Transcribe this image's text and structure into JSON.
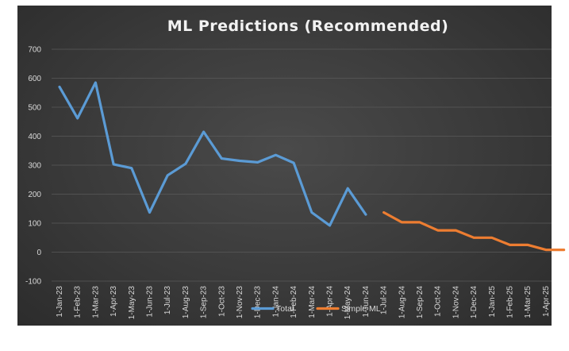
{
  "chart_data": {
    "type": "line",
    "title": "ML Predictions (Recommended)",
    "xlabel": "",
    "ylabel": "",
    "ylim": [
      -100,
      700
    ],
    "yticks": [
      700,
      600,
      500,
      400,
      300,
      200,
      100,
      0,
      -100
    ],
    "x": [
      "1-Jan-23",
      "1-Feb-23",
      "1-Mar-23",
      "1-Apr-23",
      "1-May-23",
      "1-Jun-23",
      "1-Jul-23",
      "1-Aug-23",
      "1-Sep-23",
      "1-Oct-23",
      "1-Nov-23",
      "1-Dec-23",
      "1-Jan-24",
      "1-Feb-24",
      "1-Mar-24",
      "1-Apr-24",
      "1-May-24",
      "1-Jun-24",
      "1-Jul-24",
      "1-Aug-24",
      "1-Sep-24",
      "1-Oct-24",
      "1-Nov-24",
      "1-Dec-24",
      "1-Jan-25",
      "1-Feb-25",
      "1-Mar-25",
      "1-Apr-25",
      "1-May-25"
    ],
    "xtick_labels": [
      "1-Jan-23",
      "1-Feb-23",
      "1-Mar-23",
      "1-Apr-23",
      "1-May-23",
      "1-Jun-23",
      "1-Jul-23",
      "1-Aug-23",
      "1-Sep-23",
      "1-Oct-23",
      "1-Nov-23",
      "1-Dec-23",
      "1-Jan-24",
      "1-Feb-24",
      "1-Mar-24",
      "1-Apr-24",
      "1-May-24",
      "1-Jun-24",
      "1-Jul-24",
      "1-Aug-24",
      "1-Sep-24",
      "1-Oct-24",
      "1-Nov-24",
      "1-Dec-24",
      "1-Jan-25",
      "1-Feb-25",
      "1-Mar-25",
      "1-Apr-25"
    ],
    "grid": true,
    "legend": "bottom",
    "series": [
      {
        "name": "Total",
        "color": "#5b9bd5",
        "values": [
          570,
          462,
          585,
          303,
          290,
          137,
          265,
          305,
          415,
          323,
          315,
          310,
          335,
          308,
          137,
          92,
          220,
          130,
          null,
          null,
          null,
          null,
          null,
          null,
          null,
          null,
          null,
          null,
          null
        ]
      },
      {
        "name": "Simple ML",
        "color": "#ed7d31",
        "values": [
          null,
          null,
          null,
          null,
          null,
          null,
          null,
          null,
          null,
          null,
          null,
          null,
          null,
          null,
          null,
          null,
          null,
          null,
          137,
          103,
          103,
          75,
          75,
          50,
          50,
          25,
          25,
          8,
          8
        ]
      }
    ]
  }
}
